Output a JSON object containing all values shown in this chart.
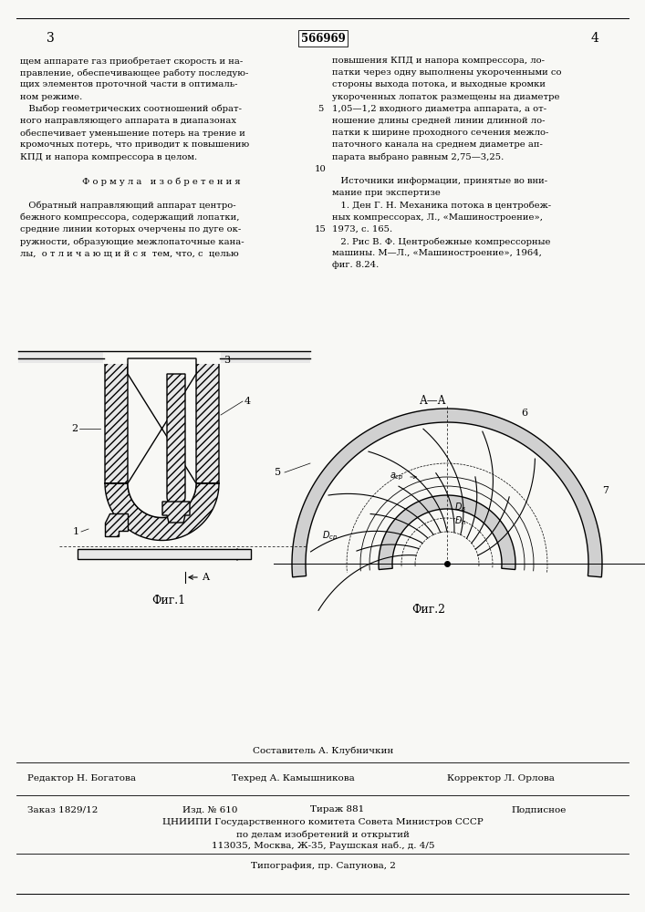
{
  "page_color": "#f8f8f5",
  "title_patent": "566969",
  "page_left_num": "3",
  "page_right_num": "4",
  "left_column_text": [
    "щем аппарате газ приобретает скорость и на-",
    "правление, обеспечивающее работу последую-",
    "щих элементов проточной части в оптималь-",
    "ном режиме.",
    "   Выбор геометрических соотношений обрат-",
    "ного направляющего аппарата в диапазонах",
    "обеспечивает уменьшение потерь на трение и",
    "кромочных потерь, что приводит к повышению",
    "КПД и напора компрессора в целом.",
    "",
    "Ф о р м у л а   и з о б р е т е н и я",
    "",
    "   Обратный направляющий аппарат центро-",
    "бежного компрессора, содержащий лопатки,",
    "средние линии которых очерчены по дуге ок-",
    "ружности, образующие межлопаточные кана-",
    "лы,  о т л и ч а ю щ и й с я  тем, что, с  целью"
  ],
  "right_column_text": [
    "повышения КПД и напора компрессора, ло-",
    "патки через одну выполнены укороченными со",
    "стороны выхода потока, и выходные кромки",
    "укороченных лопаток размещены на диаметре",
    "1,05—1,2 входного диаметра аппарата, а от-",
    "ношение длины средней линии длинной ло-",
    "патки к ширине проходного сечения межло-",
    "паточного канала на среднем диаметре ап-",
    "парата выбрано равным 2,75—3,25.",
    "",
    "   Источники информации, принятые во вни-",
    "мание при экспертизе",
    "   1. Ден Г. Н. Механика потока в центробеж-",
    "ных компрессорах, Л., «Машиностроение»,",
    "1973, с. 165.",
    "   2. Рис В. Ф. Центробежные компрессорные",
    "машины. М—Л., «Машиностроение», 1964,",
    "фиг. 8.24."
  ],
  "fig1_label": "Фиг.1",
  "fig2_label": "Фиг.2",
  "fig2_caption_AA": "А—А",
  "bottom_composer": "Составитель А. Клубничкин",
  "bottom_editor": "Редактор Н. Богатова",
  "bottom_tech": "Техред А. Камышникова",
  "bottom_corrector": "Корректор Л. Орлова",
  "bottom_order": "Заказ 1829/12",
  "bottom_issue": "Изд. № 610",
  "bottom_circulation": "Тираж 881",
  "bottom_subscription": "Подписное",
  "bottom_org": "ЦНИИПИ Государственного комитета Совета Министров СССР",
  "bottom_org2": "по делам изобретений и открытий",
  "bottom_addr": "113035, Москва, Ж-35, Раушская наб., д. 4/5",
  "bottom_print": "Типография, пр. Сапунова, 2"
}
